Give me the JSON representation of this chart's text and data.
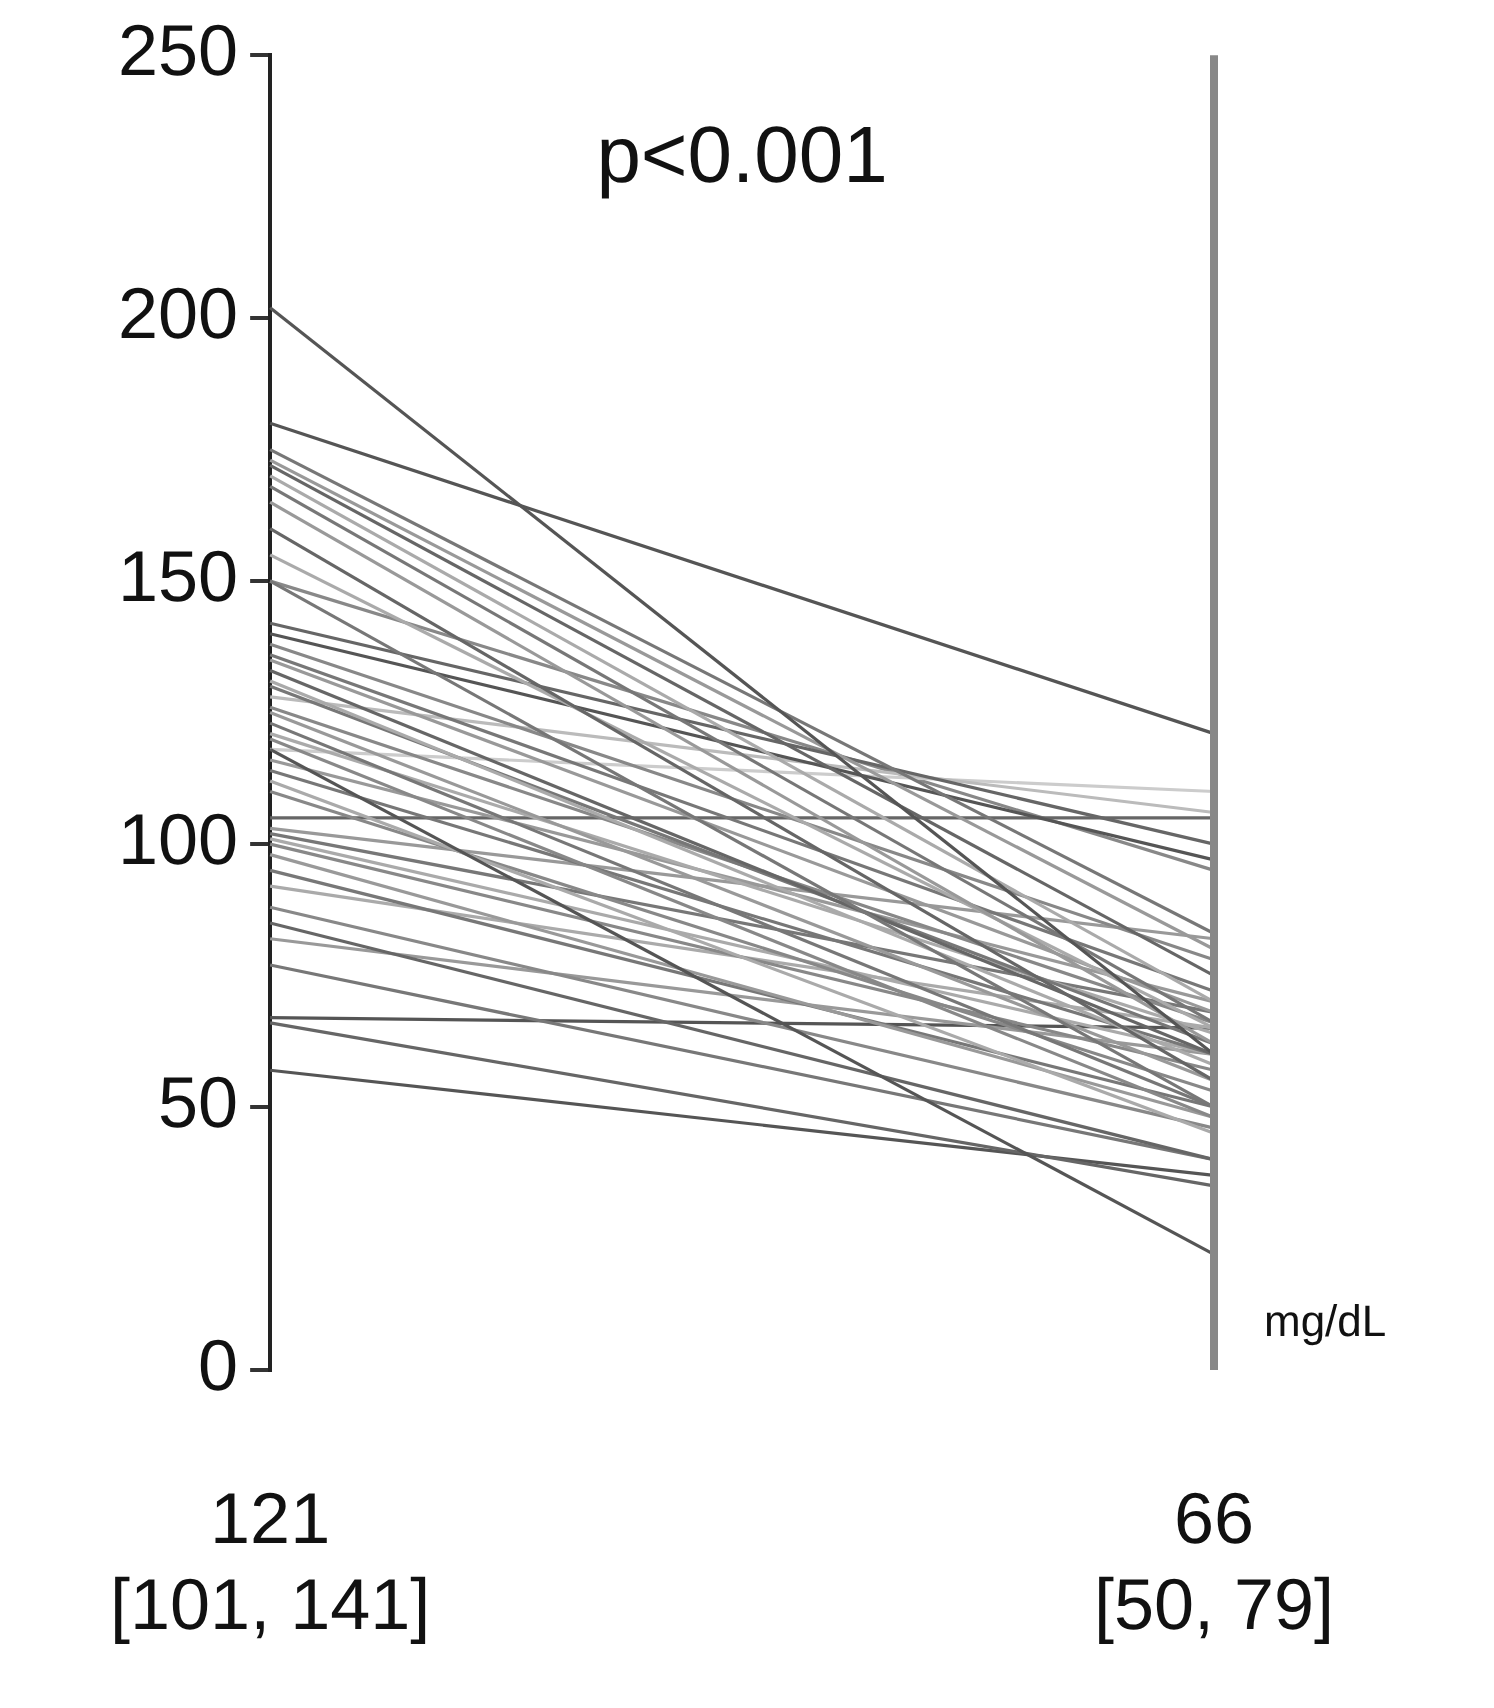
{
  "chart_data": {
    "type": "line",
    "categories": [
      "121\n[101, 141]",
      "66\n[50, 79]"
    ],
    "ylim": [
      0,
      250
    ],
    "yticks": [
      0,
      50,
      100,
      150,
      200,
      250
    ],
    "grid": false,
    "legend": false,
    "marker": "none",
    "annotations": [
      "p<0.001",
      "mg/dL"
    ],
    "ref_lines": [
      {
        "axis": "x",
        "value": "66\n[50, 79]",
        "color": "#888888"
      }
    ],
    "series": [
      {
        "color": "#555555",
        "values": [
          202,
          60
        ]
      },
      {
        "color": "#555555",
        "values": [
          180,
          121
        ]
      },
      {
        "color": "#777777",
        "values": [
          175,
          83
        ]
      },
      {
        "color": "#999999",
        "values": [
          173,
          80
        ]
      },
      {
        "color": "#666666",
        "values": [
          172,
          75
        ]
      },
      {
        "color": "#aaaaaa",
        "values": [
          170,
          70
        ]
      },
      {
        "color": "#777777",
        "values": [
          168,
          66
        ]
      },
      {
        "color": "#999999",
        "values": [
          165,
          62
        ]
      },
      {
        "color": "#666666",
        "values": [
          160,
          55
        ]
      },
      {
        "color": "#aaaaaa",
        "values": [
          155,
          65
        ]
      },
      {
        "color": "#777777",
        "values": [
          150,
          50
        ]
      },
      {
        "color": "#666666",
        "values": [
          142,
          100
        ]
      },
      {
        "color": "#555555",
        "values": [
          140,
          97
        ]
      },
      {
        "color": "#888888",
        "values": [
          138,
          78
        ]
      },
      {
        "color": "#777777",
        "values": [
          136,
          72
        ]
      },
      {
        "color": "#999999",
        "values": [
          135,
          68
        ]
      },
      {
        "color": "#666666",
        "values": [
          133,
          60
        ]
      },
      {
        "color": "#aaaaaa",
        "values": [
          131,
          58
        ]
      },
      {
        "color": "#777777",
        "values": [
          130,
          62
        ]
      },
      {
        "color": "#bbbbbb",
        "values": [
          128,
          106
        ]
      },
      {
        "color": "#888888",
        "values": [
          126,
          66
        ]
      },
      {
        "color": "#999999",
        "values": [
          125,
          55
        ]
      },
      {
        "color": "#777777",
        "values": [
          123,
          50
        ]
      },
      {
        "color": "#aaaaaa",
        "values": [
          121,
          64
        ]
      },
      {
        "color": "#888888",
        "values": [
          120,
          48
        ]
      },
      {
        "color": "#555555",
        "values": [
          118,
          22
        ]
      },
      {
        "color": "#999999",
        "values": [
          116,
          70
        ]
      },
      {
        "color": "#777777",
        "values": [
          114,
          60
        ]
      },
      {
        "color": "#aaaaaa",
        "values": [
          112,
          45
        ]
      },
      {
        "color": "#888888",
        "values": [
          110,
          53
        ]
      },
      {
        "color": "#666666",
        "values": [
          105,
          105
        ]
      },
      {
        "color": "#999999",
        "values": [
          103,
          82
        ]
      },
      {
        "color": "#777777",
        "values": [
          102,
          68
        ]
      },
      {
        "color": "#aaaaaa",
        "values": [
          101,
          60
        ]
      },
      {
        "color": "#888888",
        "values": [
          100,
          57
        ]
      },
      {
        "color": "#999999",
        "values": [
          98,
          48
        ]
      },
      {
        "color": "#777777",
        "values": [
          95,
          50
        ]
      },
      {
        "color": "#aaaaaa",
        "values": [
          92,
          65
        ]
      },
      {
        "color": "#888888",
        "values": [
          88,
          46
        ]
      },
      {
        "color": "#666666",
        "values": [
          85,
          40
        ]
      },
      {
        "color": "#999999",
        "values": [
          82,
          60
        ]
      },
      {
        "color": "#777777",
        "values": [
          77,
          40
        ]
      },
      {
        "color": "#555555",
        "values": [
          67,
          65
        ]
      },
      {
        "color": "#666666",
        "values": [
          66,
          35
        ]
      },
      {
        "color": "#555555",
        "values": [
          57,
          37
        ]
      },
      {
        "color": "#cccccc",
        "values": [
          118,
          110
        ]
      },
      {
        "color": "#888888",
        "values": [
          150,
          95
        ]
      }
    ]
  }
}
